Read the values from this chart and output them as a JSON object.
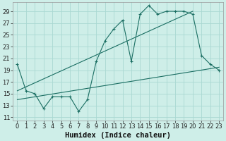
{
  "xlabel": "Humidex (Indice chaleur)",
  "background_color": "#ceeee8",
  "grid_color": "#aad8d2",
  "line_color": "#1a6e62",
  "xlim": [
    -0.5,
    23.5
  ],
  "ylim": [
    10.5,
    30.5
  ],
  "yticks": [
    11,
    13,
    15,
    17,
    19,
    21,
    23,
    25,
    27,
    29
  ],
  "xticks": [
    0,
    1,
    2,
    3,
    4,
    5,
    6,
    7,
    8,
    9,
    10,
    11,
    12,
    13,
    14,
    15,
    16,
    17,
    18,
    19,
    20,
    21,
    22,
    23
  ],
  "line1_x": [
    0,
    1,
    2,
    3,
    4,
    5,
    6,
    7,
    8,
    9,
    10,
    11,
    12,
    13,
    14,
    15,
    16,
    17,
    18,
    19,
    20,
    21,
    22,
    23
  ],
  "line1_y": [
    20,
    15.5,
    15,
    12.5,
    14.5,
    14.5,
    14.5,
    12,
    14,
    20.5,
    24,
    26,
    27.5,
    20.5,
    28.5,
    30,
    28.5,
    29,
    29,
    29,
    28.5,
    21.5,
    20,
    19
  ],
  "line2_x": [
    0,
    23
  ],
  "line2_y": [
    14,
    19.5
  ],
  "line3_x": [
    0,
    20
  ],
  "line3_y": [
    15.5,
    29
  ],
  "font_size": 6.0,
  "xlabel_fontsize": 7.5
}
